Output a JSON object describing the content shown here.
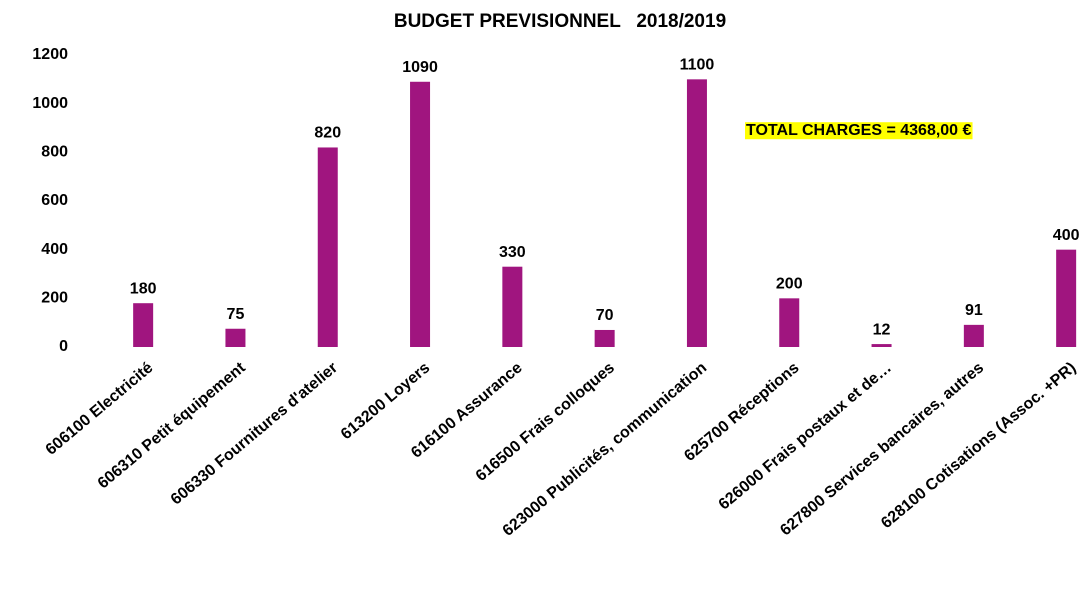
{
  "chart_data": {
    "type": "bar",
    "title": "BUDGET PREVISIONNEL   2018/2019",
    "categories": [
      "606100 Electricité",
      "606310 Petit équipement",
      "606330 Fournitures d'atelier",
      "613200 Loyers",
      "616100 Assurance",
      "616500 Frais colloques",
      "623000 Publicités, communication",
      "625700 Réceptions",
      "626000 Frais postaux et de…",
      "627800 Services bancaires, autres",
      "628100 Cotisations (Assoc. +PR)"
    ],
    "values": [
      180,
      75,
      820,
      1090,
      330,
      70,
      1100,
      200,
      12,
      91,
      400
    ],
    "color": "#a0157f",
    "ylim": [
      0,
      1200
    ],
    "yticks": [
      0,
      200,
      400,
      600,
      800,
      1000,
      1200
    ],
    "grid": false,
    "annotation": "TOTAL CHARGES = 4368,00 €",
    "annotation_color": "#ffff00"
  }
}
